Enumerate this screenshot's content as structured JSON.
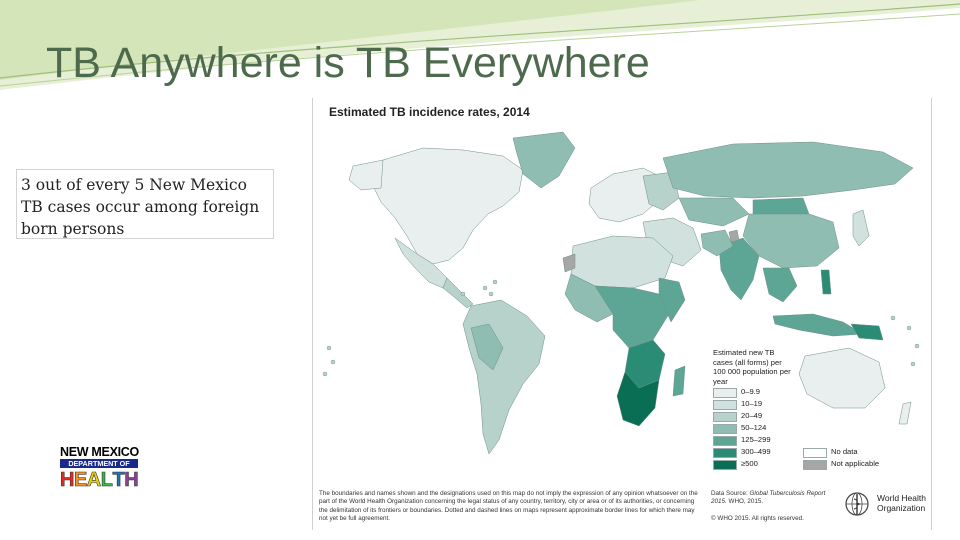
{
  "slide": {
    "title": "TB Anywhere is TB Everywhere",
    "callout": "3 out of every 5 New Mexico TB cases occur among foreign born persons"
  },
  "logo_nm": {
    "line1": "NEW MEXICO",
    "line2": "DEPARTMENT OF",
    "line3": "HEALTH",
    "letter_colors": [
      "#e22b26",
      "#f7931e",
      "#f2d200",
      "#39b54a",
      "#1c75bc",
      "#8e3f98"
    ]
  },
  "map": {
    "title": "Estimated TB incidence rates, 2014",
    "legend": {
      "title": "Estimated new TB cases (all forms) per 100 000 population per year",
      "items": [
        {
          "label": "0–9.9",
          "color": "#e8efee"
        },
        {
          "label": "10–19",
          "color": "#d1e2de"
        },
        {
          "label": "20–49",
          "color": "#b6d2cb"
        },
        {
          "label": "50–124",
          "color": "#8fbdb2"
        },
        {
          "label": "125–299",
          "color": "#5da695"
        },
        {
          "label": "300–499",
          "color": "#2b8c76"
        },
        {
          "label": "≥500",
          "color": "#0a6e55"
        },
        {
          "label": "No data",
          "color": "#ffffff"
        },
        {
          "label": "Not applicable",
          "color": "#a6a6a6"
        }
      ]
    },
    "disclaimer": "The boundaries and names shown and the designations used on this map do not imply the expression of any opinion whatsoever on the part of the World Health Organization concerning the legal status of any country, territory, city or area or of its authorities, or concerning the delimitation of its frontiers or boundaries. Dotted and dashed lines on maps represent approximate border lines for which there may not yet be full agreement.",
    "source_label": "Data Source:",
    "source_title": "Global Tuberculosis Report 2015.",
    "source_org": "WHO, 2015.",
    "copyright": "© WHO 2015. All rights reserved.",
    "who_line1": "World Health",
    "who_line2": "Organization"
  }
}
